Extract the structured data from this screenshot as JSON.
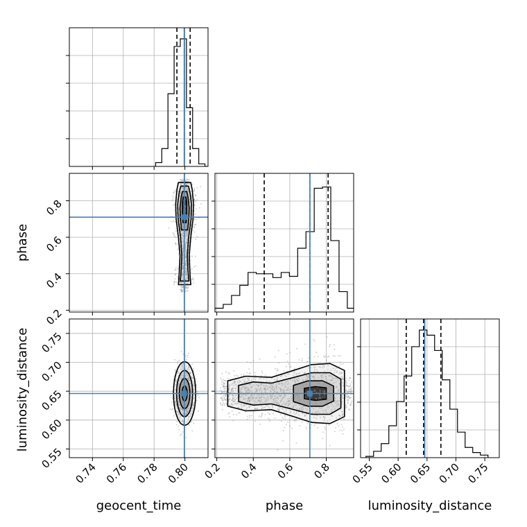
{
  "chart_data": [
    {
      "type": "histogram",
      "panel": "geocent_time-marginal",
      "xlim": [
        0.725,
        0.815
      ],
      "grid": true,
      "bin_edges": [
        0.781,
        0.785,
        0.789,
        0.793,
        0.797,
        0.801,
        0.805,
        0.809,
        0.813,
        0.817
      ],
      "counts": [
        0.03,
        0.14,
        0.57,
        0.94,
        1.0,
        0.46,
        0.14,
        0.02,
        0.0
      ],
      "quantiles": [
        0.7948,
        0.7996,
        0.8034
      ],
      "truth": 0.7996
    },
    {
      "type": "contour",
      "panel": "phase-vs-geocent_time",
      "xlim": [
        0.725,
        0.815
      ],
      "ylim": [
        0.19,
        0.95
      ],
      "y_ticks": [
        "0.2",
        "0.4",
        "0.6",
        "0.8"
      ],
      "ylabel": "phase",
      "grid": true,
      "truth": [
        0.7996,
        0.71
      ],
      "center_x": 0.7998,
      "levels": [
        {
          "points": [
            [
              0.34,
              0.004
            ],
            [
              0.4,
              0.0035
            ],
            [
              0.5,
              0.003
            ],
            [
              0.6,
              0.004
            ],
            [
              0.7,
              0.0055
            ],
            [
              0.78,
              0.0058
            ],
            [
              0.86,
              0.005
            ],
            [
              0.9,
              0.004
            ]
          ]
        },
        {
          "points": [
            [
              0.36,
              0.0028
            ],
            [
              0.42,
              0.0022
            ],
            [
              0.5,
              0.0018
            ],
            [
              0.6,
              0.0026
            ],
            [
              0.7,
              0.0042
            ],
            [
              0.78,
              0.0045
            ],
            [
              0.84,
              0.0036
            ],
            [
              0.88,
              0.0025
            ]
          ]
        },
        {
          "points": [
            [
              0.64,
              0.002
            ],
            [
              0.7,
              0.0027
            ],
            [
              0.76,
              0.003
            ],
            [
              0.82,
              0.0022
            ],
            [
              0.85,
              0.0014
            ]
          ]
        },
        {
          "points": [
            [
              0.68,
              0.001
            ],
            [
              0.73,
              0.0014
            ],
            [
              0.79,
              0.0014
            ],
            [
              0.82,
              0.0009
            ]
          ]
        }
      ]
    },
    {
      "type": "histogram",
      "panel": "phase-marginal",
      "xlim": [
        0.19,
        0.95
      ],
      "grid": true,
      "bin_edges": [
        0.19,
        0.2353,
        0.2807,
        0.326,
        0.3713,
        0.4167,
        0.462,
        0.5073,
        0.5527,
        0.598,
        0.6433,
        0.6887,
        0.734,
        0.7793,
        0.8247,
        0.87,
        0.9153,
        0.9607
      ],
      "counts": [
        0.03,
        0.06,
        0.13,
        0.21,
        0.31,
        0.3,
        0.3,
        0.27,
        0.31,
        0.28,
        0.5,
        0.63,
        0.97,
        0.98,
        0.56,
        0.16,
        0.03
      ],
      "quantiles": [
        0.46,
        0.71,
        0.81
      ],
      "truth": 0.71
    },
    {
      "type": "contour",
      "panel": "luminosity_distance-vs-geocent_time",
      "xlim": [
        0.725,
        0.815
      ],
      "xlabel": "geocent_time",
      "ylabel": "luminosity_distance",
      "x_ticks": [
        "0.74",
        "0.76",
        "0.78",
        "0.80"
      ],
      "y_ticks": [
        "0.55",
        "0.60",
        "0.65",
        "0.70",
        "0.75"
      ],
      "ylim": [
        0.535,
        0.775
      ],
      "grid": true,
      "truth": [
        0.7996,
        0.646
      ],
      "center": [
        0.7998,
        0.646
      ],
      "levels": [
        {
          "rx": 0.0072,
          "ry": 0.055
        },
        {
          "rx": 0.0052,
          "ry": 0.04
        },
        {
          "rx": 0.0034,
          "ry": 0.026
        },
        {
          "rx": 0.0017,
          "ry": 0.013
        }
      ]
    },
    {
      "type": "contour",
      "panel": "luminosity_distance-vs-phase",
      "xlim": [
        0.19,
        0.95
      ],
      "ylim": [
        0.535,
        0.775
      ],
      "xlabel": "phase",
      "x_ticks": [
        "0.2",
        "0.4",
        "0.6",
        "0.8"
      ],
      "grid": true,
      "truth": [
        0.71,
        0.646
      ],
      "center_y": 0.646,
      "levels": [
        {
          "points": [
            [
              0.26,
              0.022
            ],
            [
              0.36,
              0.03
            ],
            [
              0.5,
              0.028
            ],
            [
              0.62,
              0.04
            ],
            [
              0.72,
              0.05
            ],
            [
              0.82,
              0.052
            ],
            [
              0.9,
              0.04
            ]
          ]
        },
        {
          "points": [
            [
              0.32,
              0.014
            ],
            [
              0.4,
              0.02
            ],
            [
              0.5,
              0.018
            ],
            [
              0.6,
              0.026
            ],
            [
              0.72,
              0.036
            ],
            [
              0.82,
              0.036
            ],
            [
              0.88,
              0.025
            ]
          ]
        },
        {
          "points": [
            [
              0.62,
              0.014
            ],
            [
              0.7,
              0.022
            ],
            [
              0.78,
              0.022
            ],
            [
              0.84,
              0.013
            ]
          ]
        },
        {
          "points": [
            [
              0.68,
              0.009
            ],
            [
              0.74,
              0.012
            ],
            [
              0.8,
              0.01
            ]
          ]
        }
      ]
    },
    {
      "type": "histogram",
      "panel": "luminosity_distance-marginal",
      "xlim": [
        0.535,
        0.775
      ],
      "xlabel": "luminosity_distance",
      "x_ticks": [
        "0.55",
        "0.60",
        "0.65",
        "0.70",
        "0.75"
      ],
      "grid": true,
      "bin_edges": [
        0.5443,
        0.5575,
        0.5707,
        0.5839,
        0.5971,
        0.6103,
        0.6235,
        0.6367,
        0.6499,
        0.6631,
        0.6763,
        0.6895,
        0.7027,
        0.7159,
        0.7291,
        0.7423,
        0.7555
      ],
      "counts": [
        0.01,
        0.05,
        0.11,
        0.25,
        0.44,
        0.64,
        0.87,
        1.0,
        0.96,
        0.84,
        0.61,
        0.38,
        0.2,
        0.08,
        0.04,
        0.02
      ],
      "quantiles": [
        0.614,
        0.644,
        0.674
      ],
      "truth": 0.646
    }
  ],
  "colors": {
    "truth": "#4682b4",
    "line": "#000000",
    "grid": "#b0b0b0",
    "scatter": "#9a9a9a"
  }
}
